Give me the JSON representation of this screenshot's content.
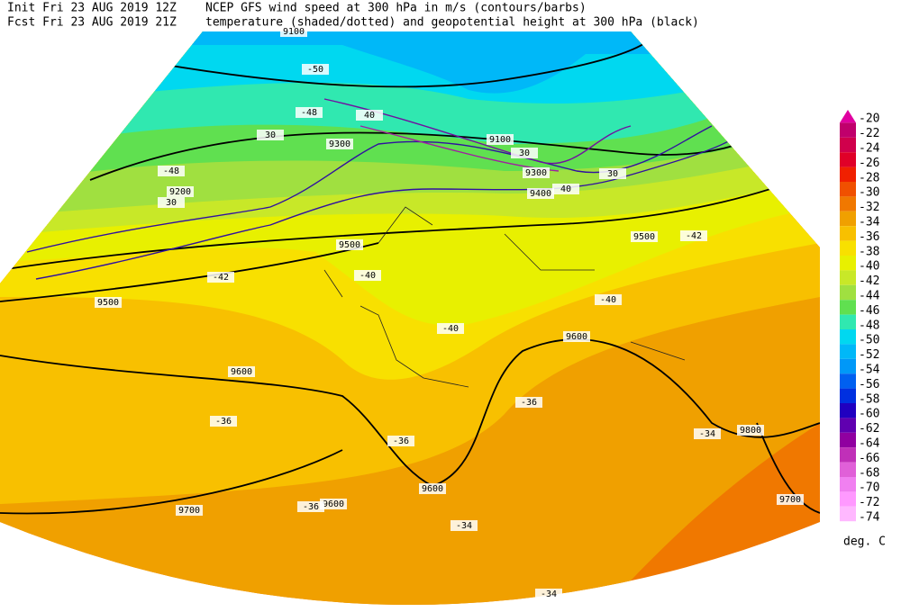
{
  "header": {
    "init": "Init  Fri 23 AUG 2019 12Z",
    "fcst": "Fcst Fri 23 AUG 2019 21Z",
    "title": "NCEP GFS wind speed at 300 hPa in m/s (contours/barbs)",
    "subtitle": "temperature (shaded/dotted) and geopotential height at 300 hPa (black)"
  },
  "legend": {
    "unit": "deg. C",
    "values": [
      -20,
      -22,
      -24,
      -26,
      -28,
      -30,
      -32,
      -34,
      -36,
      -38,
      -40,
      -42,
      -44,
      -46,
      -48,
      -50,
      -52,
      -54,
      -56,
      -58,
      -60,
      -62,
      -64,
      -66,
      -68,
      -70,
      -72,
      -74
    ],
    "colors": [
      "#e000a0",
      "#c0006c",
      "#d0004c",
      "#e00028",
      "#f02000",
      "#f05000",
      "#f07800",
      "#f0a000",
      "#f8c000",
      "#f8e000",
      "#e8f000",
      "#c8e828",
      "#a0e040",
      "#60e050",
      "#30e8b0",
      "#00d8f0",
      "#00b8f8",
      "#0098f8",
      "#0060f0",
      "#0030e0",
      "#2000c0",
      "#6000b0",
      "#9000a0",
      "#c030b8",
      "#e060d8",
      "#f080f0",
      "#ff99ff",
      "#ffb8ff"
    ]
  },
  "map": {
    "labels": [
      "9100",
      "9100",
      "9300",
      "9300",
      "9200",
      "9400",
      "9500",
      "9500",
      "9500",
      "9600",
      "9600",
      "9600",
      "9600",
      "9800",
      "9700",
      "9700",
      "30",
      "40",
      "30",
      "40",
      "30",
      "30",
      "-50",
      "-48",
      "-48",
      "-42",
      "-42",
      "-40",
      "-40",
      "-40",
      "-36",
      "-36",
      "-36",
      "-36",
      "-34",
      "-34",
      "-34"
    ]
  }
}
